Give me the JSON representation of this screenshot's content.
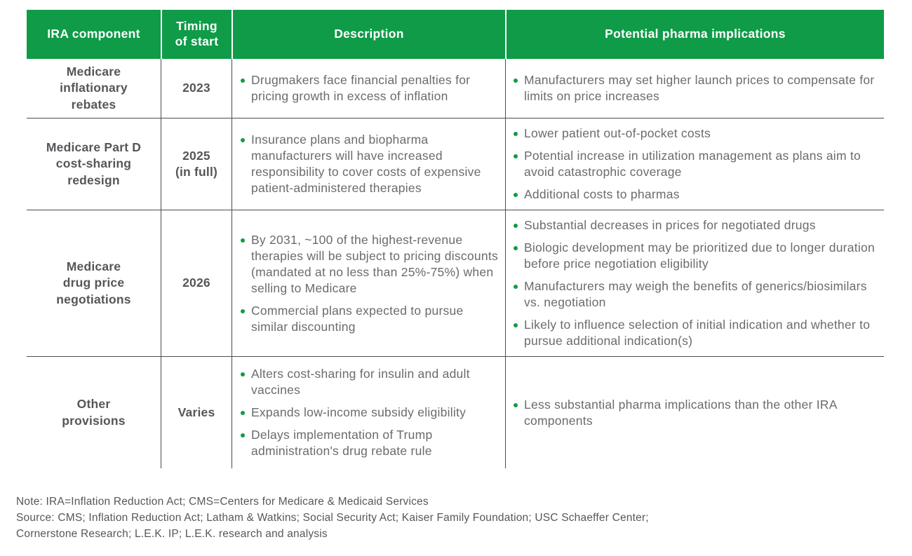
{
  "colors": {
    "header_green": "#0F9B48",
    "bullet_green": "#0F9B48",
    "body_text_gray": "#6A6B6E",
    "bold_text_gray": "#55565A",
    "border_gray": "#4D4D4F",
    "header_text": "#FFFFFF"
  },
  "table": {
    "header": {
      "col1": "IRA component",
      "col2": "Timing\nof start",
      "col3": "Description",
      "col4": "Potential pharma implications"
    },
    "rows": [
      {
        "component": "Medicare\ninflationary\nrebates",
        "timing": "2023",
        "description": [
          "Drugmakers face financial penalties for pricing growth in excess of inflation"
        ],
        "implications": [
          "Manufacturers may set higher launch prices to compensate for limits on price increases"
        ]
      },
      {
        "component": "Medicare Part D\ncost-sharing\nredesign",
        "timing": "2025\n(in full)",
        "description": [
          "Insurance plans and biopharma manufacturers will have increased responsibility to cover costs of expensive patient-administered therapies"
        ],
        "implications": [
          "Lower patient out-of-pocket costs",
          "Potential increase in utilization management as plans aim to avoid catastrophic coverage",
          "Additional costs to pharmas"
        ]
      },
      {
        "component": "Medicare\ndrug price\nnegotiations",
        "timing": "2026",
        "description": [
          "By 2031, ~100 of the highest-revenue therapies will be subject to pricing discounts (mandated at no less than 25%-75%) when selling to Medicare",
          "Commercial plans expected to pursue similar discounting"
        ],
        "implications": [
          "Substantial decreases in prices for negotiated drugs",
          "Biologic development may be prioritized due to longer duration before price negotiation eligibility",
          "Manufacturers may weigh the benefits of generics/biosimilars vs. negotiation",
          "Likely to influence selection of initial indication and whether to pursue additional indication(s)"
        ]
      },
      {
        "component": "Other\nprovisions",
        "timing": "Varies",
        "description": [
          "Alters cost-sharing for insulin and adult vaccines",
          "Expands low-income subsidy eligibility",
          "Delays implementation of Trump administration's drug rebate rule"
        ],
        "implications": [
          "Less substantial pharma implications than the other IRA components"
        ]
      }
    ]
  },
  "footnotes": {
    "note": "Note: IRA=Inflation Reduction Act; CMS=Centers for Medicare & Medicaid Services",
    "source_line1": "Source: CMS; Inflation Reduction Act; Latham & Watkins; Social Security Act; Kaiser Family Foundation; USC Schaeffer Center;",
    "source_line2": "Cornerstone Research; L.E.K. IP; L.E.K. research and analysis"
  }
}
